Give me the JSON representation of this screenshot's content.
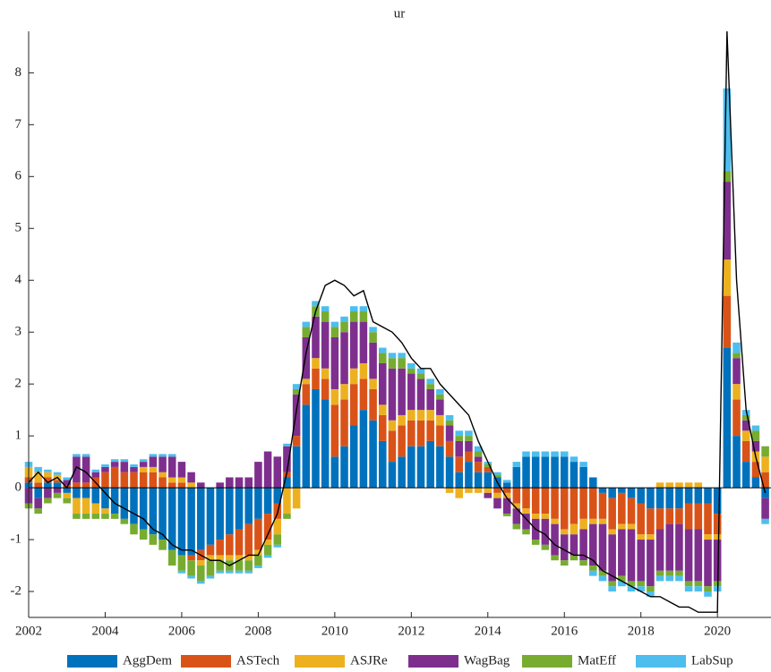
{
  "chart_data": {
    "type": "stacked-bar-line",
    "title": "ur",
    "x": [
      2002,
      2002.25,
      2002.5,
      2002.75,
      2003,
      2003.25,
      2003.5,
      2003.75,
      2004,
      2004.25,
      2004.5,
      2004.75,
      2005,
      2005.25,
      2005.5,
      2005.75,
      2006,
      2006.25,
      2006.5,
      2006.75,
      2007,
      2007.25,
      2007.5,
      2007.75,
      2008,
      2008.25,
      2008.5,
      2008.75,
      2009,
      2009.25,
      2009.5,
      2009.75,
      2010,
      2010.25,
      2010.5,
      2010.75,
      2011,
      2011.25,
      2011.5,
      2011.75,
      2012,
      2012.25,
      2012.5,
      2012.75,
      2013,
      2013.25,
      2013.5,
      2013.75,
      2014,
      2014.25,
      2014.5,
      2014.75,
      2015,
      2015.25,
      2015.5,
      2015.75,
      2016,
      2016.25,
      2016.5,
      2016.75,
      2017,
      2017.25,
      2017.5,
      2017.75,
      2018,
      2018.25,
      2018.5,
      2018.75,
      2019,
      2019.25,
      2019.5,
      2019.75,
      2020,
      2020.25,
      2020.5,
      2020.75,
      2021,
      2021.25
    ],
    "series": [
      {
        "name": "AggDem",
        "color": "#0072bd",
        "values": [
          0.1,
          -0.2,
          0.1,
          0.1,
          -0.1,
          -0.2,
          -0.2,
          -0.3,
          -0.4,
          -0.5,
          -0.6,
          -0.7,
          -0.8,
          -0.9,
          -1,
          -1.2,
          -1.3,
          -1.3,
          -1.2,
          -1.1,
          -1,
          -0.9,
          -0.8,
          -0.7,
          -0.6,
          -0.5,
          -0.3,
          0.2,
          0.8,
          1.6,
          1.9,
          1.7,
          0.6,
          0.8,
          1.2,
          1.5,
          1.3,
          0.9,
          0.5,
          0.6,
          0.8,
          0.8,
          0.9,
          0.8,
          0.6,
          0.3,
          0.5,
          0.3,
          0.3,
          0.2,
          0.1,
          0.4,
          0.6,
          0.6,
          0.6,
          0.6,
          0.6,
          0.5,
          0.4,
          0.2,
          -0.1,
          -0.2,
          -0.1,
          -0.2,
          -0.3,
          -0.4,
          -0.4,
          -0.4,
          -0.4,
          -0.3,
          -0.3,
          -0.3,
          -0.5,
          2.7,
          1,
          0.5,
          0.2,
          -0.2
        ]
      },
      {
        "name": "ASTech",
        "color": "#d95319",
        "values": [
          0.1,
          0.1,
          0.1,
          0.05,
          0.05,
          0.1,
          0.1,
          0.2,
          0.3,
          0.4,
          0.3,
          0.3,
          0.3,
          0.3,
          0.2,
          0.1,
          0.1,
          -0.1,
          -0.2,
          -0.2,
          -0.3,
          -0.4,
          -0.5,
          -0.6,
          -0.6,
          -0.5,
          -0.3,
          0.1,
          0.2,
          0.4,
          0.4,
          0.4,
          1,
          0.9,
          0.8,
          0.6,
          0.6,
          0.5,
          0.6,
          0.6,
          0.5,
          0.5,
          0.4,
          0.4,
          0.3,
          0.3,
          0.2,
          0.2,
          0.1,
          -0.1,
          -0.1,
          -0.3,
          -0.4,
          -0.5,
          -0.5,
          -0.6,
          -0.8,
          -0.7,
          -0.6,
          -0.6,
          -0.5,
          -0.6,
          -0.6,
          -0.5,
          -0.6,
          -0.5,
          -0.4,
          -0.3,
          -0.3,
          -0.5,
          -0.5,
          -0.6,
          -0.4,
          1,
          0.7,
          0.4,
          0.3,
          0.3
        ]
      },
      {
        "name": "ASJRe",
        "color": "#edb120",
        "values": [
          0.2,
          0.2,
          0.1,
          0.1,
          -0.1,
          -0.3,
          -0.3,
          -0.2,
          -0.1,
          0,
          0,
          0,
          0.1,
          0.1,
          0.1,
          0.1,
          0.1,
          0.1,
          -0.1,
          -0.1,
          -0.1,
          -0.1,
          -0.1,
          -0.1,
          -0.1,
          -0.1,
          -0.3,
          -0.5,
          -0.4,
          0.1,
          0.2,
          0.2,
          0.3,
          0.3,
          0.3,
          0.3,
          0.2,
          0.2,
          0.2,
          0.2,
          0.2,
          0.2,
          0.2,
          0.2,
          -0.1,
          -0.2,
          -0.1,
          -0.1,
          -0.1,
          -0.1,
          -0.1,
          -0.1,
          -0.1,
          -0.1,
          -0.1,
          -0.1,
          -0.1,
          -0.2,
          -0.2,
          -0.1,
          -0.1,
          -0.1,
          -0.1,
          -0.1,
          -0.1,
          -0.1,
          0.1,
          0.1,
          0.1,
          0.1,
          0.1,
          -0.1,
          -0.1,
          0.7,
          0.3,
          0.2,
          0.2,
          0.3
        ]
      },
      {
        "name": "WagBag",
        "color": "#7e2f8e",
        "values": [
          -0.3,
          -0.2,
          -0.2,
          -0.1,
          0.1,
          0.5,
          0.5,
          0.1,
          0.1,
          0.1,
          0.2,
          0.1,
          0.1,
          0.2,
          0.3,
          0.4,
          0.3,
          0.2,
          0.1,
          0,
          0.1,
          0.2,
          0.2,
          0.2,
          0.5,
          0.7,
          0.6,
          0.5,
          0.8,
          0.8,
          0.8,
          0.9,
          1,
          1,
          0.9,
          0.8,
          0.7,
          0.8,
          1,
          0.9,
          0.7,
          0.6,
          0.4,
          0.3,
          0.3,
          0.3,
          0.2,
          0.1,
          -0.1,
          -0.2,
          -0.3,
          -0.3,
          -0.3,
          -0.4,
          -0.5,
          -0.6,
          -0.5,
          -0.4,
          -0.6,
          -0.8,
          -0.9,
          -0.9,
          -0.9,
          -1,
          -0.8,
          -0.9,
          -0.8,
          -0.9,
          -0.9,
          -1,
          -1,
          -0.9,
          -0.8,
          1.5,
          0.5,
          0.2,
          0.2,
          -0.4
        ]
      },
      {
        "name": "MatEff",
        "color": "#77ac30",
        "values": [
          -0.1,
          -0.1,
          -0.1,
          -0.1,
          -0.1,
          -0.1,
          -0.1,
          -0.1,
          -0.1,
          -0.1,
          -0.1,
          -0.2,
          -0.2,
          -0.2,
          -0.2,
          -0.3,
          -0.3,
          -0.3,
          -0.3,
          -0.3,
          -0.2,
          -0.2,
          -0.2,
          -0.2,
          -0.2,
          -0.2,
          -0.2,
          -0.1,
          0.1,
          0.2,
          0.2,
          0.2,
          0.2,
          0.2,
          0.2,
          0.2,
          0.2,
          0.2,
          0.2,
          0.2,
          0.1,
          0.1,
          0.1,
          0.1,
          0.1,
          0.1,
          0.1,
          0.1,
          0.05,
          0.05,
          -0.05,
          -0.1,
          -0.1,
          -0.1,
          -0.1,
          -0.1,
          -0.1,
          -0.1,
          -0.1,
          -0.1,
          -0.1,
          -0.1,
          -0.1,
          -0.1,
          -0.1,
          -0.1,
          -0.1,
          -0.1,
          -0.1,
          -0.1,
          -0.1,
          -0.1,
          -0.1,
          0.2,
          0.1,
          0.1,
          0.2,
          0.2
        ]
      },
      {
        "name": "LabSup",
        "color": "#4dbeee",
        "values": [
          0.1,
          0.1,
          0.05,
          0.05,
          0.05,
          0.05,
          0.05,
          0.05,
          0.05,
          0.05,
          0.05,
          0.05,
          0.05,
          0.05,
          0.05,
          0.05,
          -0.05,
          -0.05,
          -0.05,
          -0.05,
          -0.05,
          -0.05,
          -0.05,
          -0.05,
          -0.05,
          -0.05,
          -0.05,
          0.05,
          0.1,
          0.1,
          0.1,
          0.1,
          0.1,
          0.1,
          0.1,
          0.1,
          0.1,
          0.1,
          0.1,
          0.1,
          0.1,
          0.1,
          0.1,
          0.1,
          0.1,
          0.1,
          0.1,
          0.1,
          0.05,
          0.05,
          0.05,
          0.1,
          0.1,
          0.1,
          0.1,
          0.1,
          0.1,
          0.1,
          0.1,
          -0.1,
          -0.1,
          -0.1,
          -0.1,
          -0.1,
          -0.1,
          -0.1,
          -0.1,
          -0.1,
          -0.1,
          -0.1,
          -0.1,
          -0.1,
          -0.1,
          1.6,
          0.2,
          0.1,
          0.1,
          -0.1
        ]
      }
    ],
    "line": {
      "color": "#000000",
      "values": [
        0.1,
        0.3,
        0.1,
        0.2,
        0,
        0.4,
        0.3,
        0.1,
        -0.1,
        -0.3,
        -0.4,
        -0.5,
        -0.6,
        -0.8,
        -0.9,
        -1.1,
        -1.2,
        -1.2,
        -1.3,
        -1.4,
        -1.4,
        -1.5,
        -1.4,
        -1.3,
        -1.3,
        -0.9,
        -0.5,
        0.3,
        1.5,
        2.6,
        3.4,
        3.9,
        4,
        3.9,
        3.7,
        3.8,
        3.2,
        3.1,
        3,
        2.8,
        2.5,
        2.3,
        2.3,
        2,
        1.8,
        1.6,
        1.4,
        0.9,
        0.5,
        0.1,
        -0.2,
        -0.4,
        -0.6,
        -0.8,
        -0.9,
        -1.1,
        -1.2,
        -1.3,
        -1.3,
        -1.4,
        -1.6,
        -1.7,
        -1.8,
        -1.9,
        -2,
        -2.1,
        -2.1,
        -2.2,
        -2.3,
        -2.3,
        -2.4,
        -2.4,
        -2.4,
        8.8,
        4,
        1.5,
        0.6,
        -0.1
      ]
    },
    "xlim": [
      2002,
      2021.4
    ],
    "ylim": [
      -2.5,
      8.8
    ],
    "xticks": [
      2002,
      2004,
      2006,
      2008,
      2010,
      2012,
      2014,
      2016,
      2018,
      2020
    ],
    "yticks": [
      -2,
      -1,
      0,
      1,
      2,
      3,
      4,
      5,
      6,
      7,
      8
    ]
  }
}
